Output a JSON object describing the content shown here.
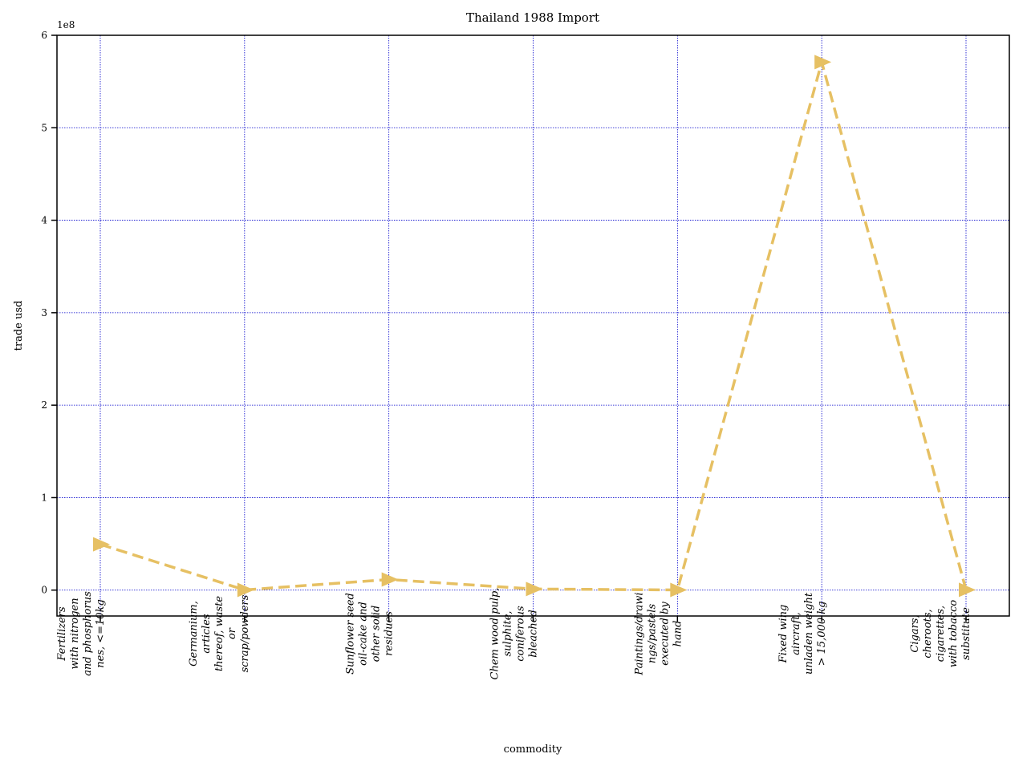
{
  "chart_data": {
    "type": "line",
    "title": "Thailand 1988 Import",
    "xlabel": "commodity",
    "ylabel": "trade usd",
    "y_offset_label": "1e8",
    "ylim": [
      -28000000,
      600000000
    ],
    "yticks": [
      0,
      100000000,
      200000000,
      300000000,
      400000000,
      500000000,
      600000000
    ],
    "ytick_labels": [
      "0",
      "1",
      "2",
      "3",
      "4",
      "5",
      "6"
    ],
    "grid": true,
    "categories": [
      [
        "Fertilizers",
        "with nitrogen",
        "and phosphorus",
        "nes, <=10kg"
      ],
      [
        "Germanium,",
        "articles",
        "thereof, waste",
        "or",
        "scrap/powders"
      ],
      [
        "Sunflower seed",
        "oil-cake and",
        "other solid",
        "residues"
      ],
      [
        "Chem wood pulp,",
        "sulphite,",
        "coniferous",
        "bleached"
      ],
      [
        "Paintings/drawi",
        "ngs/pastels",
        "executed by",
        "hand"
      ],
      [
        "Fixed wing",
        "aircraft,",
        "unladen weight",
        "> 15,000 kg"
      ],
      [
        "Cigars,",
        "cheroots,",
        "cigarettes,",
        "with tobacco",
        "substitute"
      ]
    ],
    "series": [
      {
        "values": [
          49500000,
          200000,
          11500000,
          1200000,
          200000,
          571000000,
          300000
        ],
        "color": "#e6c063",
        "line_style": "dashed",
        "marker": "triangle-right"
      }
    ],
    "grid_color": "#0000cc"
  }
}
